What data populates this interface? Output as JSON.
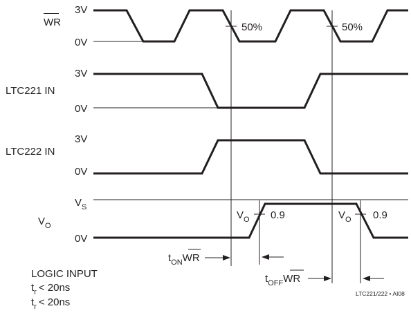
{
  "signals": {
    "wr": {
      "name": "WR",
      "high": "3V",
      "low": "0V"
    },
    "ltc221_in": {
      "name": "LTC221 IN",
      "high": "3V",
      "low": "0V"
    },
    "ltc222_in": {
      "name": "LTC222 IN",
      "high": "3V",
      "low": "0V"
    },
    "vo": {
      "name": "V",
      "name_sub": "O",
      "high": "V",
      "high_sub": "S",
      "low": "0V"
    }
  },
  "annotations": {
    "pct_1": "50%",
    "pct_2": "50%",
    "vo_mark_1": {
      "main": "V",
      "sub": "O",
      "value": "0.9"
    },
    "vo_mark_2": {
      "main": "V",
      "sub": "O",
      "value": "0.9"
    },
    "t_on": {
      "main": "t",
      "sub": "ON",
      "tail": "WR"
    },
    "t_off": {
      "main": "t",
      "sub": "OFF",
      "tail": "WR"
    }
  },
  "notes": {
    "logic_input": "LOGIC INPUT",
    "rise": {
      "main": "t",
      "sub": "r",
      "rest": "< 20ns"
    },
    "fall": {
      "main": "t",
      "sub": "r",
      "rest": "< 20ns"
    }
  },
  "figure_code": "LTC221/222 • AI08",
  "colors": {
    "ink": "#231f20",
    "background": "#ffffff"
  }
}
